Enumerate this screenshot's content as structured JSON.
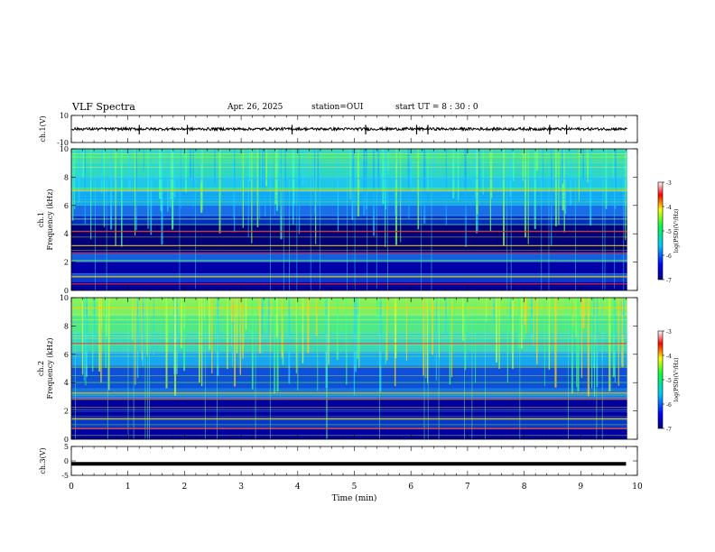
{
  "header": {
    "title": "VLF Spectra",
    "date": "Apr. 26, 2025",
    "station": "station=OUI",
    "start_ut": "start UT =  8 : 30 : 0"
  },
  "chart_data": [
    {
      "type": "line",
      "panel": "ch1-waveform",
      "ylabel": "ch.1(V)",
      "ylim": [
        -10,
        10
      ],
      "yticks": [
        "10",
        "-10"
      ],
      "x": [
        0,
        10
      ],
      "description_values": {
        "baseline_v": 0,
        "typical_amplitude_v": 1
      },
      "spikes_min": [
        1.2,
        2.05,
        3.9,
        5.2,
        6.1,
        6.3,
        8.45,
        8.75
      ]
    },
    {
      "type": "heatmap",
      "panel": "ch1-spectrogram",
      "ylabel": "ch.1\nFrequency (kHz)",
      "ylim": [
        0,
        10
      ],
      "yticks": [
        "0",
        "2",
        "4",
        "6",
        "8",
        "10"
      ],
      "xlim": [
        0,
        10
      ],
      "colorbar": {
        "label": "log(PSD)(V²/Hz)",
        "range": [
          -7,
          -3
        ],
        "ticks": [
          "-3",
          "-4",
          "-5",
          "-6",
          "-7"
        ]
      },
      "bands_khz": [
        0.5,
        1.0,
        2.7,
        3.2,
        4.2,
        7.1
      ]
    },
    {
      "type": "heatmap",
      "panel": "ch2-spectrogram",
      "ylabel": "ch.2\nFrequency (kHz)",
      "ylim": [
        0,
        10
      ],
      "yticks": [
        "0",
        "2",
        "4",
        "6",
        "8",
        "10"
      ],
      "xlim": [
        0,
        10
      ],
      "colorbar": {
        "label": "log(PSD)(V²/Hz)",
        "range": [
          -7,
          -3
        ],
        "ticks": [
          "-3",
          "-4",
          "-5",
          "-6",
          "-7"
        ]
      },
      "bands_khz": [
        0.8,
        1.5,
        2.9,
        3.3,
        6.8,
        9.3
      ]
    },
    {
      "type": "line",
      "panel": "ch3-waveform",
      "ylabel": "ch.3(V)",
      "ylim": [
        -5,
        5
      ],
      "yticks": [
        "5",
        "0",
        "-5"
      ],
      "x": [
        0,
        9.8
      ],
      "y": [
        -1,
        -1
      ]
    }
  ],
  "xaxis": {
    "label": "Time (min)",
    "ticks": [
      "0",
      "1",
      "2",
      "3",
      "4",
      "5",
      "6",
      "7",
      "8",
      "9",
      "10"
    ],
    "range": [
      0,
      10
    ]
  }
}
